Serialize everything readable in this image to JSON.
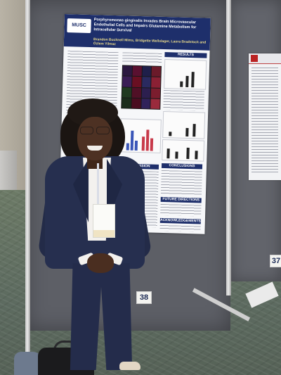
{
  "image": {
    "subject": "person-posing-beside-scientific-poster",
    "colors": {
      "board": "#5d5f66",
      "poster_header": "#1e2f6b",
      "blazer": "#262f4f",
      "floor": "#6c7a66"
    }
  },
  "poster": {
    "logo_text": "MUSC",
    "title": "Porphyromonas gingivalis Invades Brain Microvascular Endothelial Cells and Impairs Glutamine Metabolism for Intracellular Survival",
    "authors": "Brandon Bucknell Mims, Bridgette Wellslager, Laura Bradstock and Özlem Yilmaz",
    "sections": {
      "results": "RESULTS",
      "discussion": "DISCUSSION",
      "conclusions": "CONCLUSIONS",
      "future_directions": "FUTURE DIRECTIONS",
      "acknowledgements": "ACKNOWLEDGEMENTS"
    }
  },
  "booth_numbers": {
    "left": "38",
    "right": "37"
  }
}
